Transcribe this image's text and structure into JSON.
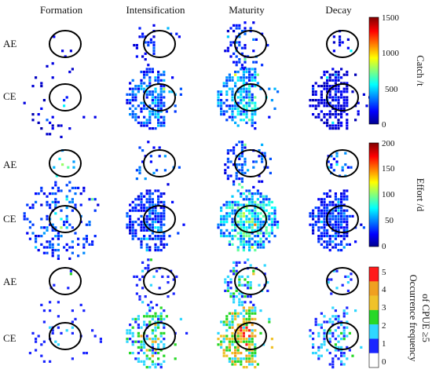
{
  "chart_data": [
    {
      "type": "heatmap",
      "quantity": "catch",
      "columns": [
        "Formation",
        "Intensification",
        "Maturity",
        "Decay"
      ],
      "rows": [
        "AE",
        "CE"
      ],
      "colorbar": {
        "label": "Catch /t",
        "ticks": [
          "1500",
          "1000",
          "500",
          "0"
        ],
        "range": [
          0,
          1500
        ]
      },
      "cells": [
        {
          "row": "AE",
          "col": "Formation",
          "pattern": "sparse-center",
          "density": 0.07,
          "level": 0.12
        },
        {
          "row": "AE",
          "col": "Intensification",
          "pattern": "sparse-left",
          "density": 0.22,
          "level": 0.15
        },
        {
          "row": "AE",
          "col": "Maturity",
          "pattern": "scattered-left-dense",
          "density": 0.45,
          "level": 0.18
        },
        {
          "row": "AE",
          "col": "Decay",
          "pattern": "sparse-center",
          "density": 0.18,
          "level": 0.1
        },
        {
          "row": "CE",
          "col": "Formation",
          "pattern": "sparse-wide",
          "density": 0.07,
          "level": 0.1
        },
        {
          "row": "CE",
          "col": "Intensification",
          "pattern": "half-disc-left",
          "density": 0.8,
          "level": 0.22
        },
        {
          "row": "CE",
          "col": "Maturity",
          "pattern": "half-disc-left",
          "density": 0.88,
          "level": 0.28
        },
        {
          "row": "CE",
          "col": "Decay",
          "pattern": "half-disc-left",
          "density": 0.85,
          "level": 0.1
        }
      ]
    },
    {
      "type": "heatmap",
      "quantity": "effort",
      "columns": [
        "Formation",
        "Intensification",
        "Maturity",
        "Decay"
      ],
      "rows": [
        "AE",
        "CE"
      ],
      "colorbar": {
        "label": "Effort /d",
        "ticks": [
          "200",
          "150",
          "100",
          "50",
          "0"
        ],
        "range": [
          0,
          200
        ]
      },
      "cells": [
        {
          "row": "AE",
          "col": "Formation",
          "pattern": "sparse-center",
          "density": 0.14,
          "level": 0.3
        },
        {
          "row": "AE",
          "col": "Intensification",
          "pattern": "sparse-left",
          "density": 0.22,
          "level": 0.22
        },
        {
          "row": "AE",
          "col": "Maturity",
          "pattern": "scattered-left-dense",
          "density": 0.45,
          "level": 0.2
        },
        {
          "row": "AE",
          "col": "Decay",
          "pattern": "sparse-center",
          "density": 0.3,
          "level": 0.2
        },
        {
          "row": "CE",
          "col": "Formation",
          "pattern": "sparse-wide",
          "density": 0.35,
          "level": 0.2
        },
        {
          "row": "CE",
          "col": "Intensification",
          "pattern": "half-disc-left",
          "density": 0.88,
          "level": 0.18
        },
        {
          "row": "CE",
          "col": "Maturity",
          "pattern": "full-disc",
          "density": 0.9,
          "level": 0.35
        },
        {
          "row": "CE",
          "col": "Decay",
          "pattern": "half-disc-left",
          "density": 0.9,
          "level": 0.16
        }
      ]
    },
    {
      "type": "heatmap",
      "quantity": "occurrence_frequency",
      "columns": [
        "Formation",
        "Intensification",
        "Maturity",
        "Decay"
      ],
      "rows": [
        "AE",
        "CE"
      ],
      "colorbar": {
        "label": "Occurrence frequency of CPUE ≥5",
        "label_line1": "Occurrence  frequency",
        "label_line2": "of CPUE ≥5",
        "ticks": [
          "5",
          "4",
          "3",
          "2",
          "1",
          "0"
        ],
        "range": [
          0,
          5
        ]
      },
      "cells": [
        {
          "row": "AE",
          "col": "Formation",
          "pattern": "sparse-center",
          "density": 0.07,
          "level": 0.2
        },
        {
          "row": "AE",
          "col": "Intensification",
          "pattern": "sparse-left",
          "density": 0.18,
          "level": 0.2
        },
        {
          "row": "AE",
          "col": "Maturity",
          "pattern": "scattered-left-dense",
          "density": 0.4,
          "level": 0.32
        },
        {
          "row": "AE",
          "col": "Decay",
          "pattern": "sparse-center",
          "density": 0.18,
          "level": 0.2
        },
        {
          "row": "CE",
          "col": "Formation",
          "pattern": "sparse-wide",
          "density": 0.07,
          "level": 0.2
        },
        {
          "row": "CE",
          "col": "Intensification",
          "pattern": "half-disc-left",
          "density": 0.6,
          "level": 0.4
        },
        {
          "row": "CE",
          "col": "Maturity",
          "pattern": "half-disc-left",
          "density": 0.85,
          "level": 0.62
        },
        {
          "row": "CE",
          "col": "Decay",
          "pattern": "half-disc-left",
          "density": 0.6,
          "level": 0.28
        }
      ]
    }
  ]
}
